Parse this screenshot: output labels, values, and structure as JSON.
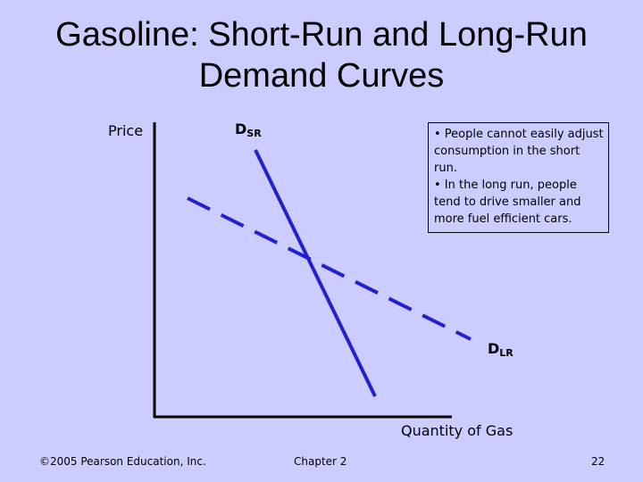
{
  "title": {
    "line1": "Gasoline: Short-Run and Long-Run",
    "line2": "Demand Curves"
  },
  "axes": {
    "y_label": "Price",
    "x_label": "Quantity of Gas"
  },
  "curves": {
    "short_run": {
      "label_main": "D",
      "label_sub": "SR",
      "style": "solid",
      "color": "#2222cc"
    },
    "long_run": {
      "label_main": "D",
      "label_sub": "LR",
      "style": "dashed",
      "color": "#2222cc"
    }
  },
  "note": {
    "bullets": [
      "• People cannot easily adjust consumption in the short run.",
      "• In the long run, people tend to drive smaller and more fuel efficient cars."
    ]
  },
  "footer": {
    "copyright": "©2005 Pearson Education, Inc.",
    "chapter": "Chapter 2",
    "page_number": "22"
  }
}
